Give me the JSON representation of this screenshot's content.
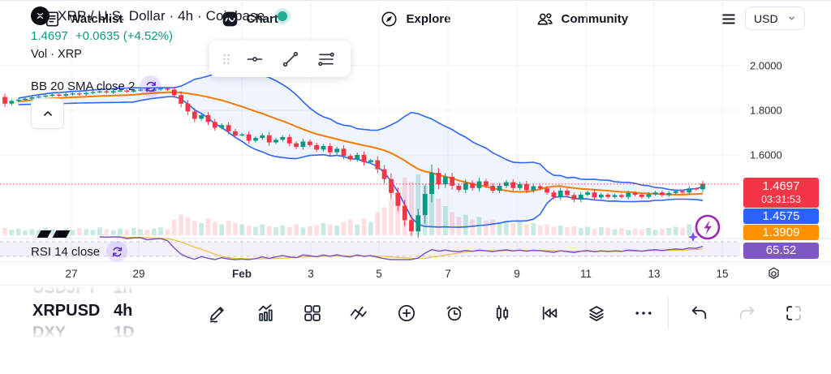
{
  "header": {
    "title": "XRP / U.S. Dollar · 4h · Coinbase",
    "price": "1.4697",
    "change": "+0.0635 (+4.52%)",
    "vol_label": "Vol · XRP",
    "bb_label": "BB 20 SMA close 2",
    "rsi_label": "RSI 14 close"
  },
  "currency_selector": {
    "value": "USD"
  },
  "price_scale": {
    "labels": [
      "2.0000",
      "1.8000",
      "1.6000"
    ],
    "badges": [
      {
        "text": "1.4697",
        "sub": "03:31:53",
        "color": "#f23645"
      },
      {
        "text": "1.4575",
        "sub": null,
        "color": "#2962ff"
      },
      {
        "text": "1.3909",
        "sub": null,
        "color": "#ff9100"
      },
      {
        "text": "65.52",
        "sub": null,
        "color": "#7e57c2"
      }
    ]
  },
  "time_axis": {
    "ticks": [
      "27",
      "29",
      "Feb",
      "3",
      "5",
      "7",
      "9",
      "11",
      "13",
      "15"
    ]
  },
  "picker": {
    "rows": [
      {
        "symbol": "USDJPY",
        "interval": "1h",
        "selected": false
      },
      {
        "symbol": "XRPUSD",
        "interval": "4h",
        "selected": true
      },
      {
        "symbol": "DXY",
        "interval": "1D",
        "selected": false
      }
    ]
  },
  "floating_toolbar": {
    "tools": [
      "drag-handle",
      "horizontal-line",
      "trend-line",
      "parallel-lines"
    ]
  },
  "toolbar": {
    "buttons": [
      "draw",
      "indicators",
      "layout-grid",
      "patterns",
      "add",
      "alert",
      "chart-type",
      "replay",
      "layers",
      "more",
      "divider",
      "undo",
      "redo",
      "fullscreen"
    ],
    "disabled": [
      "redo"
    ]
  },
  "bottom_nav": {
    "items": [
      {
        "label": "Watchlist",
        "icon": "watchlist",
        "active": false
      },
      {
        "label": "Chart",
        "icon": "chart",
        "active": true
      },
      {
        "label": "Explore",
        "icon": "explore",
        "active": false
      },
      {
        "label": "Community",
        "icon": "community",
        "active": false
      },
      {
        "label": "Menu",
        "icon": "menu",
        "active": false
      }
    ]
  },
  "colors": {
    "up": "#089981",
    "down": "#f23645",
    "bb_band": "#2e66f6",
    "bb_fill": "rgba(41,98,255,0.07)",
    "sma": "#f57c00",
    "rsi": "#7e57c2",
    "rsi_ma": "#edc240",
    "price_line": "#f23645",
    "live": "#22ab94",
    "grid": "#f1f2f6"
  },
  "chart_data": {
    "type": "candlestick",
    "symbol": "XRPUSD",
    "interval": "4h",
    "title": "XRP / U.S. Dollar · 4h · Coinbase",
    "last_price": 1.4697,
    "countdown": "03:31:53",
    "y_axis": {
      "visible_labels": [
        2.0,
        1.8,
        1.6
      ],
      "approx_range": [
        1.2,
        2.05
      ]
    },
    "x_axis": {
      "tick_labels": [
        "27",
        "29",
        "Feb",
        "3",
        "5",
        "7",
        "9",
        "11",
        "13",
        "15"
      ]
    },
    "indicators": {
      "bollinger": {
        "period": 20,
        "source": "SMA close",
        "stddev": 2,
        "upper_last": 1.4575,
        "basis_last": 1.3909
      },
      "rsi": {
        "period": 14,
        "source": "close",
        "last_value": 65.52
      },
      "volume": {
        "label": "Vol · XRP"
      }
    },
    "closes": [
      1.83,
      1.842,
      1.848,
      1.852,
      1.858,
      1.862,
      1.866,
      1.87,
      1.866,
      1.872,
      1.876,
      1.872,
      1.878,
      1.882,
      1.885,
      1.88,
      1.886,
      1.889,
      1.884,
      1.89,
      1.893,
      1.888,
      1.894,
      1.898,
      1.893,
      1.868,
      1.83,
      1.795,
      1.762,
      1.778,
      1.748,
      1.722,
      1.734,
      1.706,
      1.688,
      1.692,
      1.664,
      1.676,
      1.688,
      1.656,
      1.668,
      1.68,
      1.652,
      1.636,
      1.66,
      1.644,
      1.624,
      1.64,
      1.612,
      1.628,
      1.596,
      1.58,
      1.6,
      1.568,
      1.576,
      1.536,
      1.492,
      1.43,
      1.372,
      1.308,
      1.258,
      1.33,
      1.425,
      1.52,
      1.468,
      1.502,
      1.462,
      1.444,
      1.475,
      1.452,
      1.482,
      1.462,
      1.44,
      1.462,
      1.478,
      1.452,
      1.47,
      1.442,
      1.46,
      1.45,
      1.432,
      1.412,
      1.44,
      1.42,
      1.4,
      1.422,
      1.432,
      1.41,
      1.422,
      1.412,
      1.42,
      1.412,
      1.43,
      1.422,
      1.412,
      1.424,
      1.432,
      1.42,
      1.43,
      1.438,
      1.432,
      1.45,
      1.446,
      1.4697
    ],
    "volumes": [
      12,
      9,
      11,
      8,
      10,
      9,
      12,
      10,
      8,
      11,
      9,
      12,
      10,
      9,
      13,
      10,
      8,
      11,
      9,
      12,
      10,
      9,
      11,
      13,
      10,
      26,
      34,
      30,
      24,
      20,
      28,
      22,
      18,
      24,
      20,
      18,
      16,
      14,
      18,
      15,
      13,
      16,
      14,
      18,
      13,
      15,
      17,
      20,
      18,
      16,
      22,
      26,
      18,
      28,
      22,
      38,
      46,
      60,
      72,
      95,
      88,
      100,
      85,
      92,
      60,
      48,
      38,
      30,
      34,
      26,
      30,
      24,
      26,
      22,
      24,
      20,
      22,
      18,
      20,
      16,
      18,
      14,
      16,
      13,
      15,
      12,
      14,
      11,
      13,
      12,
      10,
      12,
      9,
      11,
      10,
      12,
      9,
      11,
      12,
      14,
      12,
      18,
      16,
      26
    ]
  }
}
